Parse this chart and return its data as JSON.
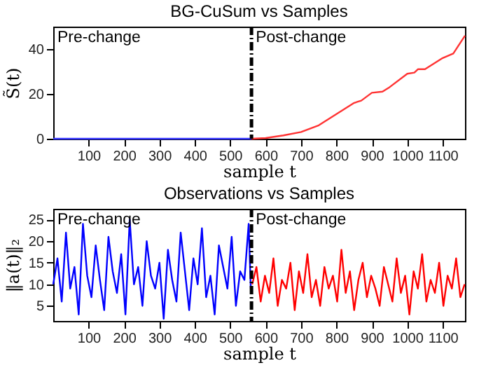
{
  "chart_data": [
    {
      "type": "line",
      "title": "BG-CuSum vs Samples",
      "xlabel": "sample t",
      "ylabel": "S̃(t)",
      "xlim": [
        0,
        1163
      ],
      "xticks": [
        100,
        200,
        300,
        400,
        500,
        600,
        700,
        800,
        900,
        1000,
        1100
      ],
      "ylim": [
        0,
        50
      ],
      "yticks": [
        0,
        20,
        40
      ],
      "grid": false,
      "legend": false,
      "series": [
        {
          "color": "#3333ff",
          "x": [
            0,
            560
          ],
          "values": [
            0,
            0
          ]
        },
        {
          "color": "#ff3333",
          "x": [
            560,
            600,
            650,
            700,
            750,
            800,
            850,
            870,
            900,
            930,
            950,
            1000,
            1020,
            1030,
            1050,
            1100,
            1130,
            1163
          ],
          "values": [
            0,
            0.3,
            1.5,
            3,
            6,
            11,
            16,
            17,
            20.5,
            21,
            23,
            29,
            29.5,
            31,
            31,
            36,
            38,
            46
          ]
        }
      ],
      "ref_lines": [
        {
          "axis": "x",
          "value": 560,
          "color": "#000000",
          "line_style": "dashed"
        }
      ],
      "annotations": [
        "Pre-change",
        "Post-change"
      ]
    },
    {
      "type": "line",
      "title": "Observations vs Samples",
      "xlabel": "sample t",
      "ylabel": "‖a(t)‖₂",
      "xlim": [
        0,
        1163
      ],
      "xticks": [
        100,
        200,
        300,
        400,
        500,
        600,
        700,
        800,
        900,
        1000,
        1100
      ],
      "ylim": [
        1.5,
        27.5
      ],
      "yticks": [
        5,
        10,
        15,
        20,
        25
      ],
      "grid": false,
      "legend": false,
      "series": [
        {
          "color": "#0000ff",
          "x": [
            0,
            12,
            24,
            36,
            48,
            60,
            72,
            84,
            96,
            108,
            120,
            132,
            144,
            156,
            168,
            180,
            192,
            204,
            216,
            228,
            240,
            252,
            264,
            276,
            288,
            300,
            312,
            324,
            336,
            348,
            360,
            372,
            384,
            396,
            408,
            420,
            432,
            444,
            456,
            468,
            480,
            492,
            504,
            516,
            528,
            540,
            552,
            558
          ],
          "values": [
            10,
            16,
            6,
            22,
            9,
            14,
            3,
            24,
            12,
            7,
            19,
            11,
            4,
            21,
            13,
            8,
            17,
            3,
            25,
            10,
            14,
            5,
            20,
            12,
            9,
            15,
            2,
            18,
            11,
            6,
            22,
            13,
            4,
            16,
            10,
            23,
            7,
            12,
            3,
            19,
            14,
            9,
            21,
            5,
            13,
            11,
            24,
            9
          ]
        },
        {
          "color": "#ff0000",
          "x": [
            562,
            574,
            586,
            598,
            610,
            622,
            634,
            646,
            658,
            670,
            682,
            694,
            706,
            718,
            730,
            742,
            754,
            766,
            778,
            790,
            802,
            814,
            826,
            838,
            850,
            862,
            874,
            886,
            898,
            910,
            922,
            934,
            946,
            958,
            970,
            982,
            994,
            1006,
            1018,
            1030,
            1042,
            1054,
            1066,
            1078,
            1090,
            1102,
            1114,
            1126,
            1138,
            1150,
            1162
          ],
          "values": [
            10,
            14,
            6,
            12,
            8,
            16,
            5,
            11,
            9,
            15,
            4,
            13,
            8,
            17,
            7,
            11,
            5,
            14,
            9,
            12,
            6,
            18,
            8,
            13,
            4,
            11,
            15,
            7,
            12,
            9,
            5,
            14,
            10,
            6,
            16,
            8,
            12,
            3,
            13,
            9,
            17,
            6,
            11,
            8,
            15,
            5,
            12,
            9,
            16,
            7,
            10
          ]
        }
      ],
      "ref_lines": [
        {
          "axis": "x",
          "value": 560,
          "color": "#000000",
          "line_style": "dashed"
        }
      ],
      "annotations": [
        "Pre-change",
        "Post-change"
      ]
    }
  ]
}
